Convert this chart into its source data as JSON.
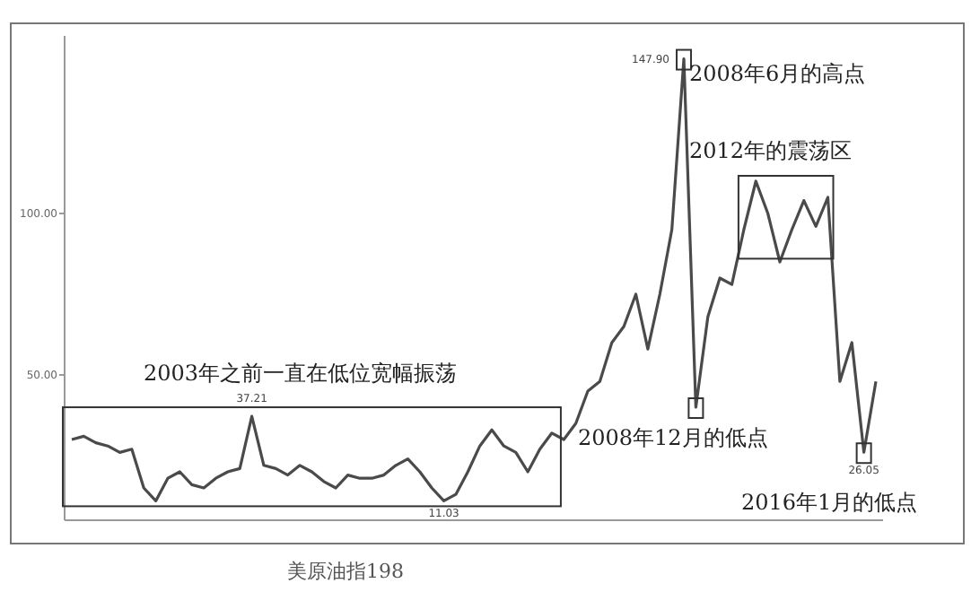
{
  "chart_data": {
    "type": "line",
    "categories": [
      null,
      null,
      null,
      null,
      null,
      null,
      null,
      null,
      null,
      null,
      null,
      null,
      null,
      null,
      null,
      null,
      null,
      null,
      null,
      null,
      null,
      null,
      null,
      null,
      null,
      null,
      null,
      null,
      null,
      null,
      null,
      null,
      null,
      null,
      null,
      null,
      null,
      null,
      null,
      null,
      null,
      null,
      null,
      null,
      null,
      null,
      null,
      null,
      null,
      null,
      null,
      null,
      null,
      null,
      null,
      null,
      null,
      null,
      null,
      null,
      null,
      null,
      null,
      null,
      null,
      null,
      null,
      null
    ],
    "series": [
      {
        "color": "#4a4a4a",
        "values": [
          30,
          31,
          29,
          28,
          26,
          27,
          15,
          11,
          18,
          20,
          16,
          15,
          18,
          20,
          21,
          37.21,
          22,
          21,
          19,
          22,
          20,
          17,
          15,
          19,
          18,
          18,
          19,
          22,
          24,
          20,
          15,
          11.03,
          13,
          20,
          28,
          33,
          28,
          26,
          20,
          27,
          32,
          30,
          35,
          45,
          48,
          60,
          65,
          75,
          58,
          75,
          95,
          147.9,
          40,
          68,
          80,
          78,
          95,
          110,
          100,
          85,
          95,
          104,
          96,
          105,
          48,
          60,
          26.05,
          48
        ],
        "value_labels": [
          null,
          null,
          null,
          null,
          null,
          null,
          null,
          null,
          null,
          null,
          null,
          null,
          null,
          null,
          null,
          "37.21",
          null,
          null,
          null,
          null,
          null,
          null,
          null,
          null,
          null,
          null,
          null,
          null,
          null,
          null,
          null,
          "11.03",
          null,
          null,
          null,
          null,
          null,
          null,
          null,
          null,
          null,
          null,
          null,
          null,
          null,
          null,
          null,
          null,
          null,
          null,
          null,
          "147.90",
          null,
          null,
          null,
          null,
          null,
          null,
          null,
          null,
          null,
          null,
          null,
          null,
          null,
          null,
          "26.05",
          null
        ]
      }
    ],
    "ylim": [
      5,
      155
    ],
    "yticks": [
      {
        "value": 50,
        "label": "50.00"
      },
      {
        "value": 100,
        "label": "100.00"
      }
    ],
    "tick_labels": "y",
    "grid": false,
    "annotations": [
      "2008年6月的高点",
      "2012年的震荡区",
      "2003年之前一直在低位宽幅振荡",
      "2008年12月的低点",
      "2016年1月的低点",
      "美原油指198"
    ]
  }
}
